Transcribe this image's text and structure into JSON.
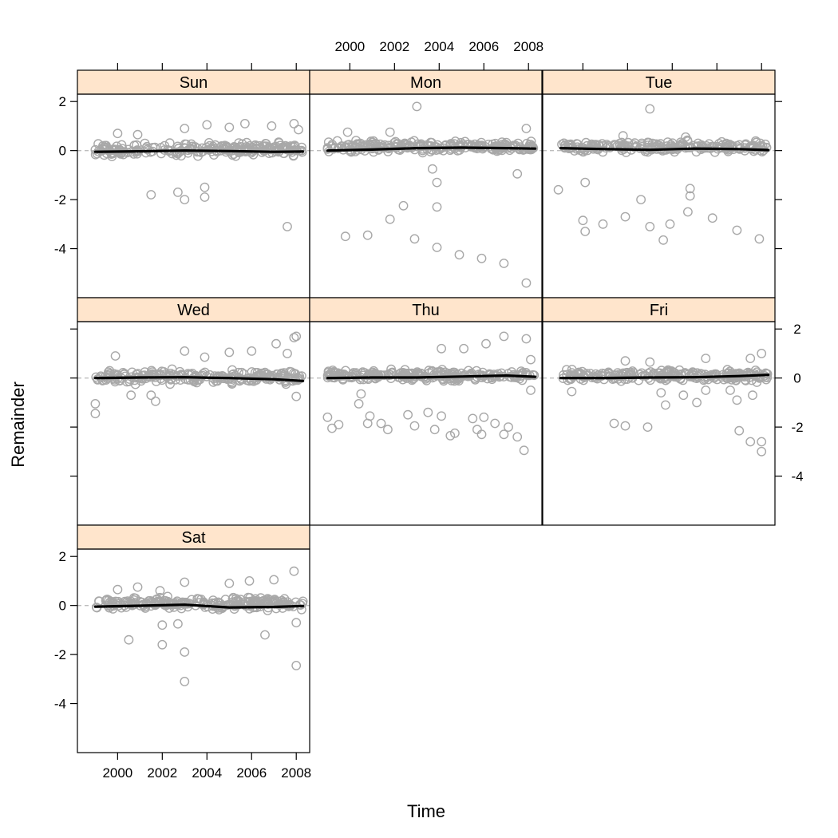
{
  "chart_data": {
    "type": "scatter",
    "subtype": "trellis-panels",
    "xlabel": "Time",
    "ylabel": "Remainder",
    "xlim": [
      1998.2,
      2008.6
    ],
    "ylim": [
      -6.0,
      2.3
    ],
    "x_ticks": [
      2000,
      2002,
      2004,
      2006,
      2008
    ],
    "y_ticks": [
      2,
      0,
      -2,
      -4
    ],
    "reference_line_y": 0,
    "strip_color": "#ffe5cc",
    "point_color": "#a8a8a8",
    "trend_color": "#000000",
    "panels": [
      {
        "label": "Sun",
        "row": 0,
        "col": 0,
        "trend": [
          [
            1999.0,
            -0.05
          ],
          [
            2001.0,
            -0.03
          ],
          [
            2003.0,
            0.0
          ],
          [
            2005.0,
            -0.02
          ],
          [
            2007.0,
            -0.05
          ],
          [
            2008.3,
            -0.04
          ]
        ],
        "outliers": [
          [
            2001.5,
            -1.8
          ],
          [
            2002.7,
            -1.7
          ],
          [
            2003.0,
            -2.0
          ],
          [
            2003.9,
            -1.5
          ],
          [
            2003.9,
            -1.9
          ],
          [
            2007.6,
            -3.1
          ],
          [
            2004.0,
            1.05
          ],
          [
            2005.7,
            1.1
          ],
          [
            2003.0,
            0.9
          ],
          [
            2007.9,
            1.1
          ],
          [
            2008.1,
            0.85
          ],
          [
            2005.0,
            0.95
          ],
          [
            2006.9,
            1.0
          ],
          [
            2000.0,
            0.7
          ],
          [
            2000.9,
            0.65
          ]
        ],
        "band": {
          "mean": 0.05,
          "spread": 0.28
        }
      },
      {
        "label": "Mon",
        "row": 0,
        "col": 1,
        "trend": [
          [
            1999.0,
            0.0
          ],
          [
            2001.0,
            0.04
          ],
          [
            2003.0,
            0.1
          ],
          [
            2005.0,
            0.12
          ],
          [
            2007.0,
            0.1
          ],
          [
            2008.3,
            0.08
          ]
        ],
        "outliers": [
          [
            1999.8,
            -3.5
          ],
          [
            2000.8,
            -3.45
          ],
          [
            2001.8,
            -2.8
          ],
          [
            2002.4,
            -2.25
          ],
          [
            2002.9,
            -3.6
          ],
          [
            2003.0,
            1.8
          ],
          [
            2003.7,
            -0.75
          ],
          [
            2003.9,
            -1.3
          ],
          [
            2003.9,
            -2.3
          ],
          [
            2003.9,
            -3.95
          ],
          [
            2004.9,
            -4.25
          ],
          [
            2005.9,
            -4.4
          ],
          [
            2006.9,
            -4.6
          ],
          [
            2007.5,
            -0.95
          ],
          [
            2007.9,
            -5.4
          ],
          [
            2007.9,
            0.9
          ],
          [
            1999.9,
            0.75
          ],
          [
            2001.8,
            0.75
          ]
        ],
        "band": {
          "mean": 0.15,
          "spread": 0.25
        }
      },
      {
        "label": "Tue",
        "row": 0,
        "col": 2,
        "trend": [
          [
            1999.0,
            0.1
          ],
          [
            2001.0,
            0.06
          ],
          [
            2003.0,
            0.03
          ],
          [
            2005.0,
            0.08
          ],
          [
            2007.0,
            0.06
          ],
          [
            2008.3,
            0.02
          ]
        ],
        "outliers": [
          [
            1998.9,
            -1.6
          ],
          [
            2000.0,
            -2.85
          ],
          [
            2000.1,
            -3.3
          ],
          [
            2000.1,
            -1.3
          ],
          [
            2000.9,
            -3.0
          ],
          [
            2001.9,
            -2.7
          ],
          [
            2002.6,
            -2.0
          ],
          [
            2003.0,
            -3.1
          ],
          [
            2003.0,
            1.7
          ],
          [
            2003.6,
            -3.65
          ],
          [
            2003.9,
            -3.0
          ],
          [
            2004.7,
            -2.5
          ],
          [
            2004.8,
            -1.55
          ],
          [
            2004.8,
            -1.85
          ],
          [
            2005.8,
            -2.75
          ],
          [
            2006.9,
            -3.25
          ],
          [
            2007.9,
            -3.6
          ],
          [
            2001.8,
            0.6
          ],
          [
            2004.6,
            0.55
          ]
        ],
        "band": {
          "mean": 0.15,
          "spread": 0.25
        }
      },
      {
        "label": "Wed",
        "row": 1,
        "col": 0,
        "trend": [
          [
            1999.0,
            0.0
          ],
          [
            2001.0,
            0.02
          ],
          [
            2003.0,
            0.03
          ],
          [
            2005.0,
            0.0
          ],
          [
            2007.0,
            -0.05
          ],
          [
            2008.3,
            -0.12
          ]
        ],
        "outliers": [
          [
            1999.0,
            -1.05
          ],
          [
            1999.0,
            -1.45
          ],
          [
            1999.9,
            0.9
          ],
          [
            2000.6,
            -0.7
          ],
          [
            2001.5,
            -0.7
          ],
          [
            2001.7,
            -0.95
          ],
          [
            2003.0,
            1.1
          ],
          [
            2003.9,
            0.85
          ],
          [
            2005.0,
            1.05
          ],
          [
            2006.0,
            1.1
          ],
          [
            2007.1,
            1.4
          ],
          [
            2007.6,
            1.0
          ],
          [
            2007.9,
            1.65
          ],
          [
            2008.0,
            1.7
          ],
          [
            2008.0,
            -0.75
          ]
        ],
        "band": {
          "mean": 0.05,
          "spread": 0.3
        }
      },
      {
        "label": "Thu",
        "row": 1,
        "col": 1,
        "trend": [
          [
            1999.0,
            0.0
          ],
          [
            2001.0,
            0.02
          ],
          [
            2003.0,
            0.02
          ],
          [
            2005.0,
            0.06
          ],
          [
            2007.0,
            0.1
          ],
          [
            2008.3,
            0.05
          ]
        ],
        "outliers": [
          [
            1999.0,
            -1.6
          ],
          [
            1999.2,
            -2.05
          ],
          [
            1999.5,
            -1.9
          ],
          [
            2000.4,
            -1.05
          ],
          [
            2000.5,
            -0.65
          ],
          [
            2000.8,
            -1.85
          ],
          [
            2000.9,
            -1.55
          ],
          [
            2001.4,
            -1.85
          ],
          [
            2001.7,
            -2.1
          ],
          [
            2002.6,
            -1.5
          ],
          [
            2002.9,
            -1.95
          ],
          [
            2003.5,
            -1.4
          ],
          [
            2003.8,
            -2.1
          ],
          [
            2004.1,
            -1.55
          ],
          [
            2004.5,
            -2.35
          ],
          [
            2004.7,
            -2.25
          ],
          [
            2005.5,
            -1.65
          ],
          [
            2005.7,
            -2.1
          ],
          [
            2005.9,
            -2.3
          ],
          [
            2006.0,
            -1.6
          ],
          [
            2006.5,
            -1.85
          ],
          [
            2006.9,
            -2.3
          ],
          [
            2007.1,
            -2.0
          ],
          [
            2007.5,
            -2.4
          ],
          [
            2007.8,
            -2.95
          ],
          [
            2006.9,
            1.7
          ],
          [
            2007.9,
            1.6
          ],
          [
            2008.1,
            -0.5
          ],
          [
            2004.1,
            1.2
          ],
          [
            2005.1,
            1.2
          ],
          [
            2006.1,
            1.4
          ],
          [
            2008.1,
            0.75
          ]
        ],
        "band": {
          "mean": 0.1,
          "spread": 0.25
        }
      },
      {
        "label": "Fri",
        "row": 1,
        "col": 2,
        "trend": [
          [
            1999.0,
            0.0
          ],
          [
            2001.0,
            0.0
          ],
          [
            2003.0,
            0.02
          ],
          [
            2005.0,
            0.03
          ],
          [
            2007.0,
            0.08
          ],
          [
            2008.3,
            0.13
          ]
        ],
        "outliers": [
          [
            1999.5,
            -0.55
          ],
          [
            2001.4,
            -1.85
          ],
          [
            2001.9,
            -1.95
          ],
          [
            2002.9,
            -2.0
          ],
          [
            2003.5,
            -0.6
          ],
          [
            2003.7,
            -1.1
          ],
          [
            2004.5,
            -0.7
          ],
          [
            2005.1,
            -1.0
          ],
          [
            2005.5,
            -0.5
          ],
          [
            2006.6,
            -0.5
          ],
          [
            2006.9,
            -0.9
          ],
          [
            2007.0,
            -2.15
          ],
          [
            2007.5,
            -2.6
          ],
          [
            2007.6,
            -0.7
          ],
          [
            2008.0,
            -2.6
          ],
          [
            2008.0,
            -3.0
          ],
          [
            2001.9,
            0.7
          ],
          [
            2003.0,
            0.65
          ],
          [
            2005.5,
            0.8
          ],
          [
            2007.5,
            0.8
          ],
          [
            2008.0,
            1.0
          ]
        ],
        "band": {
          "mean": 0.1,
          "spread": 0.25
        }
      },
      {
        "label": "Sat",
        "row": 2,
        "col": 0,
        "trend": [
          [
            1999.0,
            -0.05
          ],
          [
            2001.0,
            -0.01
          ],
          [
            2003.0,
            0.03
          ],
          [
            2005.0,
            -0.08
          ],
          [
            2007.0,
            -0.06
          ],
          [
            2008.3,
            -0.02
          ]
        ],
        "outliers": [
          [
            2000.5,
            -1.4
          ],
          [
            2002.0,
            -0.8
          ],
          [
            2002.0,
            -1.6
          ],
          [
            2002.7,
            -0.75
          ],
          [
            2003.0,
            -1.9
          ],
          [
            2003.0,
            -3.1
          ],
          [
            2006.6,
            -1.2
          ],
          [
            2008.0,
            -2.45
          ],
          [
            2008.0,
            -0.7
          ],
          [
            2003.0,
            0.95
          ],
          [
            2005.0,
            0.9
          ],
          [
            2005.9,
            1.0
          ],
          [
            2007.0,
            1.05
          ],
          [
            2007.9,
            1.4
          ],
          [
            2000.0,
            0.65
          ],
          [
            2000.9,
            0.75
          ],
          [
            2001.9,
            0.6
          ]
        ],
        "band": {
          "mean": 0.1,
          "spread": 0.3
        }
      }
    ]
  }
}
